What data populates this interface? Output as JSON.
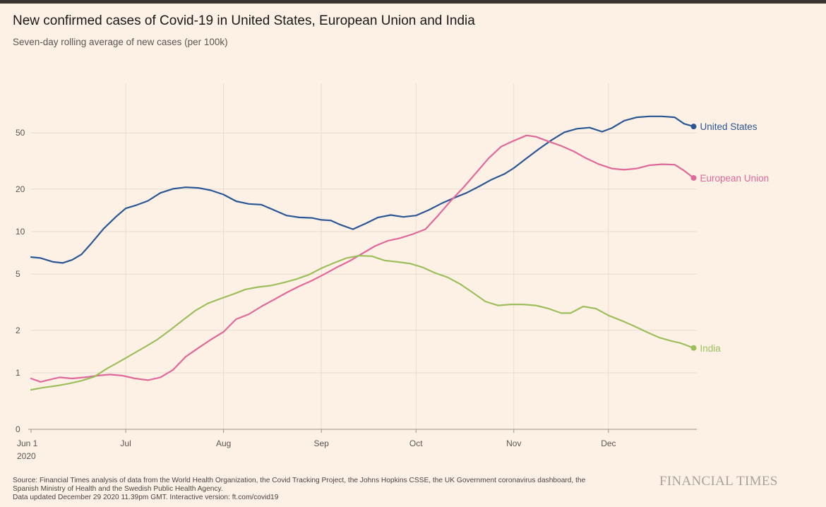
{
  "header": {
    "title": "New confirmed cases of Covid-19 in United States, European Union and India",
    "subtitle": "Seven-day rolling average of new cases (per 100k)"
  },
  "footer": {
    "source_line1": "Source: Financial Times analysis of data from the World Health Organization, the Covid Tracking Project, the Johns Hopkins CSSE, the UK Government coronavirus dashboard, the",
    "source_line2": "Spanish Ministry of Health and the Swedish Public Health Agency.",
    "source_line3": "Data updated December 29 2020 11.39pm GMT. Interactive version: ft.com/covid19",
    "brand": "FINANCIAL TIMES"
  },
  "colors": {
    "background": "#fdf1e6",
    "grid": "#e8dccf",
    "axis": "#9c948e",
    "united_states": "#2a5694",
    "european_union": "#e0699a",
    "india": "#9cbf5c"
  },
  "chart_data": {
    "type": "line",
    "title": "New confirmed cases of Covid-19 in United States, European Union and India",
    "subtitle": "Seven-day rolling average of new cases (per 100k)",
    "y_scale": "log-like",
    "xlim": [
      "2020-06-01",
      "2020-12-29"
    ],
    "x_ticks": [
      {
        "date": "2020-06-01",
        "label": "Jun 1",
        "sublabel": "2020"
      },
      {
        "date": "2020-07-01",
        "label": "Jul"
      },
      {
        "date": "2020-08-01",
        "label": "Aug"
      },
      {
        "date": "2020-09-01",
        "label": "Sep"
      },
      {
        "date": "2020-10-01",
        "label": "Oct"
      },
      {
        "date": "2020-11-01",
        "label": "Nov"
      },
      {
        "date": "2020-12-01",
        "label": "Dec"
      }
    ],
    "y_ticks": [
      {
        "value": 0,
        "label": "0"
      },
      {
        "value": 1,
        "label": "1"
      },
      {
        "value": 2,
        "label": "2"
      },
      {
        "value": 5,
        "label": "5"
      },
      {
        "value": 10,
        "label": "10"
      },
      {
        "value": 20,
        "label": "20"
      },
      {
        "value": 50,
        "label": "50"
      }
    ],
    "grid": true,
    "series": [
      {
        "name": "United States",
        "color": "#2a5694",
        "points": [
          [
            "2020-06-01",
            6.6
          ],
          [
            "2020-06-04",
            6.5
          ],
          [
            "2020-06-08",
            6.1
          ],
          [
            "2020-06-11",
            6.0
          ],
          [
            "2020-06-14",
            6.3
          ],
          [
            "2020-06-17",
            6.9
          ],
          [
            "2020-06-20",
            8.2
          ],
          [
            "2020-06-24",
            10.5
          ],
          [
            "2020-06-28",
            12.8
          ],
          [
            "2020-07-01",
            14.6
          ],
          [
            "2020-07-04",
            15.3
          ],
          [
            "2020-07-08",
            16.5
          ],
          [
            "2020-07-12",
            18.8
          ],
          [
            "2020-07-16",
            20.1
          ],
          [
            "2020-07-20",
            20.6
          ],
          [
            "2020-07-24",
            20.4
          ],
          [
            "2020-07-28",
            19.6
          ],
          [
            "2020-08-01",
            18.3
          ],
          [
            "2020-08-05",
            16.4
          ],
          [
            "2020-08-09",
            15.7
          ],
          [
            "2020-08-13",
            15.5
          ],
          [
            "2020-08-17",
            14.2
          ],
          [
            "2020-08-21",
            13.0
          ],
          [
            "2020-08-25",
            12.6
          ],
          [
            "2020-08-29",
            12.5
          ],
          [
            "2020-09-01",
            12.1
          ],
          [
            "2020-09-04",
            12.0
          ],
          [
            "2020-09-07",
            11.2
          ],
          [
            "2020-09-11",
            10.4
          ],
          [
            "2020-09-15",
            11.4
          ],
          [
            "2020-09-19",
            12.6
          ],
          [
            "2020-09-23",
            13.1
          ],
          [
            "2020-09-27",
            12.7
          ],
          [
            "2020-10-01",
            13.0
          ],
          [
            "2020-10-05",
            14.2
          ],
          [
            "2020-10-09",
            15.8
          ],
          [
            "2020-10-13",
            17.3
          ],
          [
            "2020-10-17",
            18.8
          ],
          [
            "2020-10-21",
            20.9
          ],
          [
            "2020-10-25",
            23.4
          ],
          [
            "2020-10-29",
            25.6
          ],
          [
            "2020-11-01",
            28.2
          ],
          [
            "2020-11-05",
            33.0
          ],
          [
            "2020-11-09",
            38.5
          ],
          [
            "2020-11-13",
            44.5
          ],
          [
            "2020-11-17",
            50.5
          ],
          [
            "2020-11-21",
            53.5
          ],
          [
            "2020-11-25",
            54.5
          ],
          [
            "2020-11-29",
            51.0
          ],
          [
            "2020-12-02",
            54.0
          ],
          [
            "2020-12-06",
            61.0
          ],
          [
            "2020-12-10",
            64.5
          ],
          [
            "2020-12-14",
            65.5
          ],
          [
            "2020-12-18",
            65.5
          ],
          [
            "2020-12-22",
            64.5
          ],
          [
            "2020-12-25",
            58.0
          ],
          [
            "2020-12-28",
            55.5
          ]
        ]
      },
      {
        "name": "European Union",
        "color": "#e0699a",
        "points": [
          [
            "2020-06-01",
            0.9
          ],
          [
            "2020-06-04",
            0.84
          ],
          [
            "2020-06-07",
            0.88
          ],
          [
            "2020-06-10",
            0.92
          ],
          [
            "2020-06-14",
            0.9
          ],
          [
            "2020-06-18",
            0.92
          ],
          [
            "2020-06-22",
            0.95
          ],
          [
            "2020-06-26",
            0.97
          ],
          [
            "2020-06-30",
            0.95
          ],
          [
            "2020-07-04",
            0.9
          ],
          [
            "2020-07-08",
            0.87
          ],
          [
            "2020-07-12",
            0.92
          ],
          [
            "2020-07-16",
            1.05
          ],
          [
            "2020-07-20",
            1.3
          ],
          [
            "2020-07-24",
            1.5
          ],
          [
            "2020-07-28",
            1.72
          ],
          [
            "2020-08-01",
            1.95
          ],
          [
            "2020-08-05",
            2.4
          ],
          [
            "2020-08-09",
            2.6
          ],
          [
            "2020-08-13",
            2.95
          ],
          [
            "2020-08-17",
            3.3
          ],
          [
            "2020-08-21",
            3.7
          ],
          [
            "2020-08-25",
            4.1
          ],
          [
            "2020-08-29",
            4.5
          ],
          [
            "2020-09-02",
            5.0
          ],
          [
            "2020-09-06",
            5.6
          ],
          [
            "2020-09-10",
            6.2
          ],
          [
            "2020-09-14",
            7.0
          ],
          [
            "2020-09-18",
            7.9
          ],
          [
            "2020-09-22",
            8.6
          ],
          [
            "2020-09-26",
            9.0
          ],
          [
            "2020-09-30",
            9.6
          ],
          [
            "2020-10-04",
            10.4
          ],
          [
            "2020-10-08",
            13.0
          ],
          [
            "2020-10-12",
            16.5
          ],
          [
            "2020-10-16",
            20.5
          ],
          [
            "2020-10-20",
            26.0
          ],
          [
            "2020-10-24",
            33.0
          ],
          [
            "2020-10-28",
            40.0
          ],
          [
            "2020-11-01",
            44.0
          ],
          [
            "2020-11-05",
            48.0
          ],
          [
            "2020-11-08",
            47.0
          ],
          [
            "2020-11-12",
            43.5
          ],
          [
            "2020-11-16",
            40.5
          ],
          [
            "2020-11-20",
            37.0
          ],
          [
            "2020-11-24",
            33.0
          ],
          [
            "2020-11-28",
            30.0
          ],
          [
            "2020-12-02",
            28.0
          ],
          [
            "2020-12-06",
            27.4
          ],
          [
            "2020-12-10",
            28.0
          ],
          [
            "2020-12-14",
            29.5
          ],
          [
            "2020-12-18",
            30.0
          ],
          [
            "2020-12-22",
            29.8
          ],
          [
            "2020-12-25",
            27.0
          ],
          [
            "2020-12-28",
            24.0
          ]
        ]
      },
      {
        "name": "India",
        "color": "#9cbf5c",
        "points": [
          [
            "2020-06-01",
            0.7
          ],
          [
            "2020-06-05",
            0.74
          ],
          [
            "2020-06-09",
            0.77
          ],
          [
            "2020-06-13",
            0.81
          ],
          [
            "2020-06-17",
            0.86
          ],
          [
            "2020-06-21",
            0.93
          ],
          [
            "2020-06-25",
            1.07
          ],
          [
            "2020-06-29",
            1.2
          ],
          [
            "2020-07-03",
            1.35
          ],
          [
            "2020-07-07",
            1.52
          ],
          [
            "2020-07-11",
            1.72
          ],
          [
            "2020-07-15",
            2.0
          ],
          [
            "2020-07-19",
            2.35
          ],
          [
            "2020-07-23",
            2.75
          ],
          [
            "2020-07-27",
            3.1
          ],
          [
            "2020-07-31",
            3.35
          ],
          [
            "2020-08-04",
            3.6
          ],
          [
            "2020-08-08",
            3.9
          ],
          [
            "2020-08-12",
            4.05
          ],
          [
            "2020-08-16",
            4.15
          ],
          [
            "2020-08-20",
            4.35
          ],
          [
            "2020-08-24",
            4.6
          ],
          [
            "2020-08-28",
            4.95
          ],
          [
            "2020-09-01",
            5.5
          ],
          [
            "2020-09-05",
            6.0
          ],
          [
            "2020-09-09",
            6.5
          ],
          [
            "2020-09-13",
            6.75
          ],
          [
            "2020-09-17",
            6.7
          ],
          [
            "2020-09-21",
            6.25
          ],
          [
            "2020-09-25",
            6.1
          ],
          [
            "2020-09-29",
            5.95
          ],
          [
            "2020-10-03",
            5.6
          ],
          [
            "2020-10-07",
            5.1
          ],
          [
            "2020-10-11",
            4.75
          ],
          [
            "2020-10-15",
            4.25
          ],
          [
            "2020-10-19",
            3.7
          ],
          [
            "2020-10-23",
            3.2
          ],
          [
            "2020-10-27",
            3.0
          ],
          [
            "2020-10-31",
            3.05
          ],
          [
            "2020-11-04",
            3.05
          ],
          [
            "2020-11-08",
            3.0
          ],
          [
            "2020-11-12",
            2.85
          ],
          [
            "2020-11-16",
            2.65
          ],
          [
            "2020-11-19",
            2.65
          ],
          [
            "2020-11-23",
            2.95
          ],
          [
            "2020-11-27",
            2.85
          ],
          [
            "2020-12-01",
            2.55
          ],
          [
            "2020-12-05",
            2.35
          ],
          [
            "2020-12-09",
            2.15
          ],
          [
            "2020-12-13",
            1.95
          ],
          [
            "2020-12-17",
            1.78
          ],
          [
            "2020-12-21",
            1.68
          ],
          [
            "2020-12-24",
            1.62
          ],
          [
            "2020-12-28",
            1.5
          ]
        ]
      }
    ]
  }
}
